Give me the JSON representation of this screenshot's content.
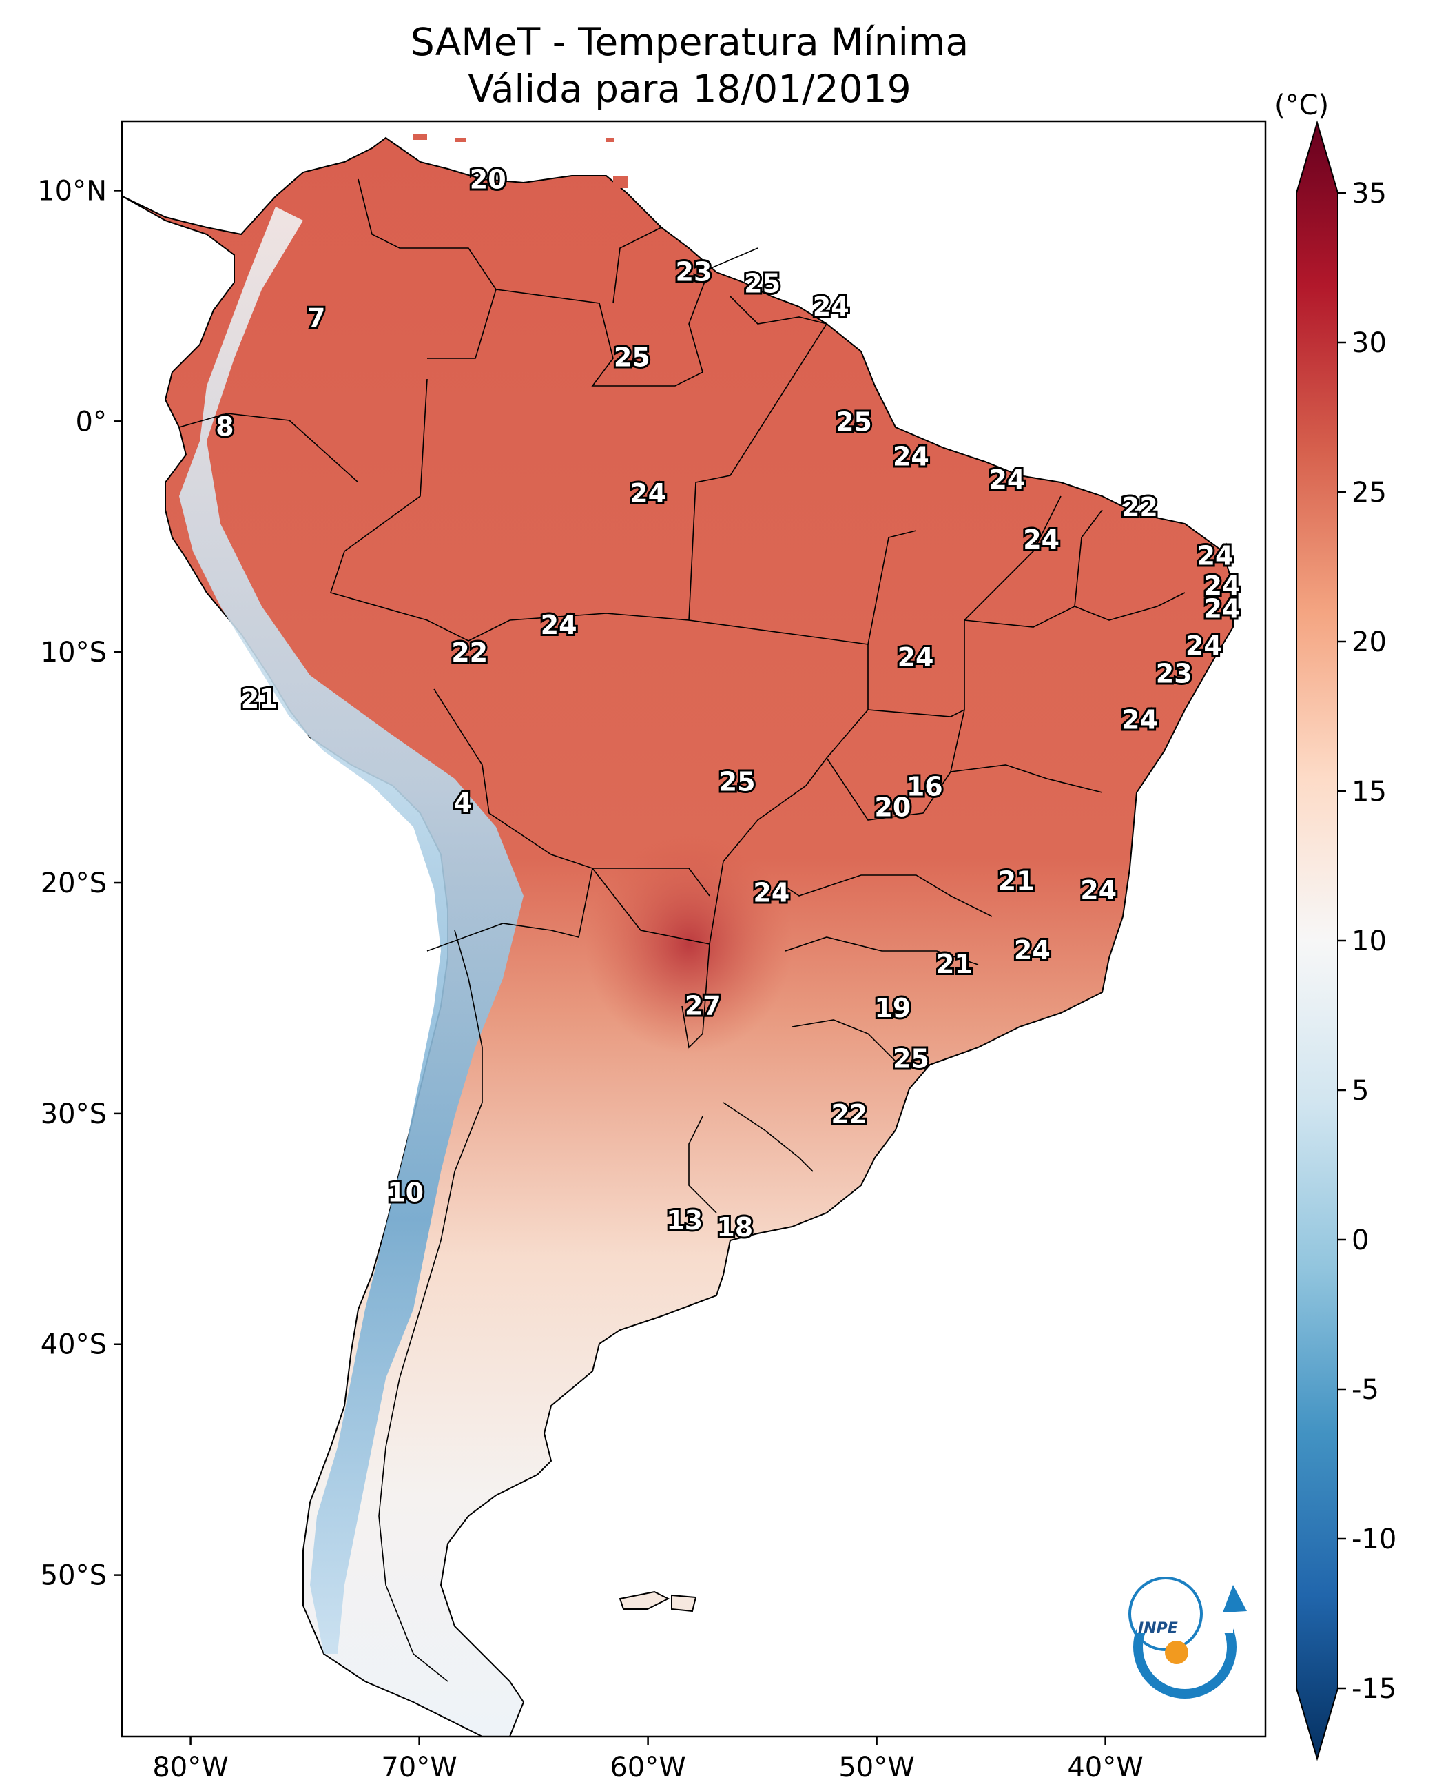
{
  "title": "SAMeT - Temperatura Mínima",
  "subtitle": "Válida para 18/01/2019",
  "colorbar": {
    "unit": "(°C)",
    "ticks": [
      "35",
      "30",
      "25",
      "20",
      "15",
      "10",
      "5",
      "0",
      "-5",
      "-10",
      "-15"
    ],
    "colormap": "RdBu_r",
    "range": [
      -15,
      35
    ]
  },
  "axes": {
    "lat_ticks": [
      "10°N",
      "0°",
      "10°S",
      "20°S",
      "30°S",
      "40°S",
      "50°S"
    ],
    "lon_ticks": [
      "80°W",
      "70°W",
      "60°W",
      "50°W",
      "40°W"
    ],
    "lon_range": [
      -83,
      -33
    ],
    "lat_range": [
      -57,
      13
    ]
  },
  "station_values": [
    {
      "label": "20",
      "lat": 10.5,
      "lon": -67
    },
    {
      "label": "7",
      "lat": 4.5,
      "lon": -74.5
    },
    {
      "label": "23",
      "lat": 6.5,
      "lon": -58
    },
    {
      "label": "25",
      "lat": 6,
      "lon": -55
    },
    {
      "label": "24",
      "lat": 5,
      "lon": -52
    },
    {
      "label": "25",
      "lat": 2.8,
      "lon": -60.7
    },
    {
      "label": "8",
      "lat": -0.2,
      "lon": -78.5
    },
    {
      "label": "25",
      "lat": 0,
      "lon": -51
    },
    {
      "label": "24",
      "lat": -1.5,
      "lon": -48.5
    },
    {
      "label": "24",
      "lat": -2.5,
      "lon": -44.3
    },
    {
      "label": "24",
      "lat": -3.1,
      "lon": -60
    },
    {
      "label": "22",
      "lat": -3.7,
      "lon": -38.5
    },
    {
      "label": "24",
      "lat": -5.1,
      "lon": -42.8
    },
    {
      "label": "24",
      "lat": -5.8,
      "lon": -35.2
    },
    {
      "label": "24",
      "lat": -7.1,
      "lon": -34.9
    },
    {
      "label": "24",
      "lat": -8.1,
      "lon": -34.9
    },
    {
      "label": "24",
      "lat": -8.8,
      "lon": -63.9
    },
    {
      "label": "22",
      "lat": -10,
      "lon": -67.8
    },
    {
      "label": "24",
      "lat": -10.2,
      "lon": -48.3
    },
    {
      "label": "24",
      "lat": -9.7,
      "lon": -35.7
    },
    {
      "label": "23",
      "lat": -10.9,
      "lon": -37
    },
    {
      "label": "21",
      "lat": -12,
      "lon": -77
    },
    {
      "label": "24",
      "lat": -12.9,
      "lon": -38.5
    },
    {
      "label": "25",
      "lat": -15.6,
      "lon": -56.1
    },
    {
      "label": "16",
      "lat": -15.8,
      "lon": -47.9
    },
    {
      "label": "4",
      "lat": -16.5,
      "lon": -68.1
    },
    {
      "label": "20",
      "lat": -16.7,
      "lon": -49.3
    },
    {
      "label": "21",
      "lat": -19.9,
      "lon": -43.9
    },
    {
      "label": "24",
      "lat": -20.3,
      "lon": -40.3
    },
    {
      "label": "24",
      "lat": -20.4,
      "lon": -54.6
    },
    {
      "label": "24",
      "lat": -22.9,
      "lon": -43.2
    },
    {
      "label": "21",
      "lat": -23.5,
      "lon": -46.6
    },
    {
      "label": "19",
      "lat": -25.4,
      "lon": -49.3
    },
    {
      "label": "27",
      "lat": -25.3,
      "lon": -57.6
    },
    {
      "label": "25",
      "lat": -27.6,
      "lon": -48.5
    },
    {
      "label": "22",
      "lat": -30,
      "lon": -51.2
    },
    {
      "label": "10",
      "lat": -33.4,
      "lon": -70.6
    },
    {
      "label": "13",
      "lat": -34.6,
      "lon": -58.4
    },
    {
      "label": "18",
      "lat": -34.9,
      "lon": -56.2
    }
  ],
  "logo": {
    "text": "INPE",
    "colors": {
      "ring": "#1b7fc1",
      "dot": "#f29a1f"
    }
  },
  "colors": {
    "deep_red": "#67001f",
    "red": "#d6604d",
    "white": "#f7f7f7",
    "blue": "#4393c3",
    "deep_blue": "#053061"
  }
}
